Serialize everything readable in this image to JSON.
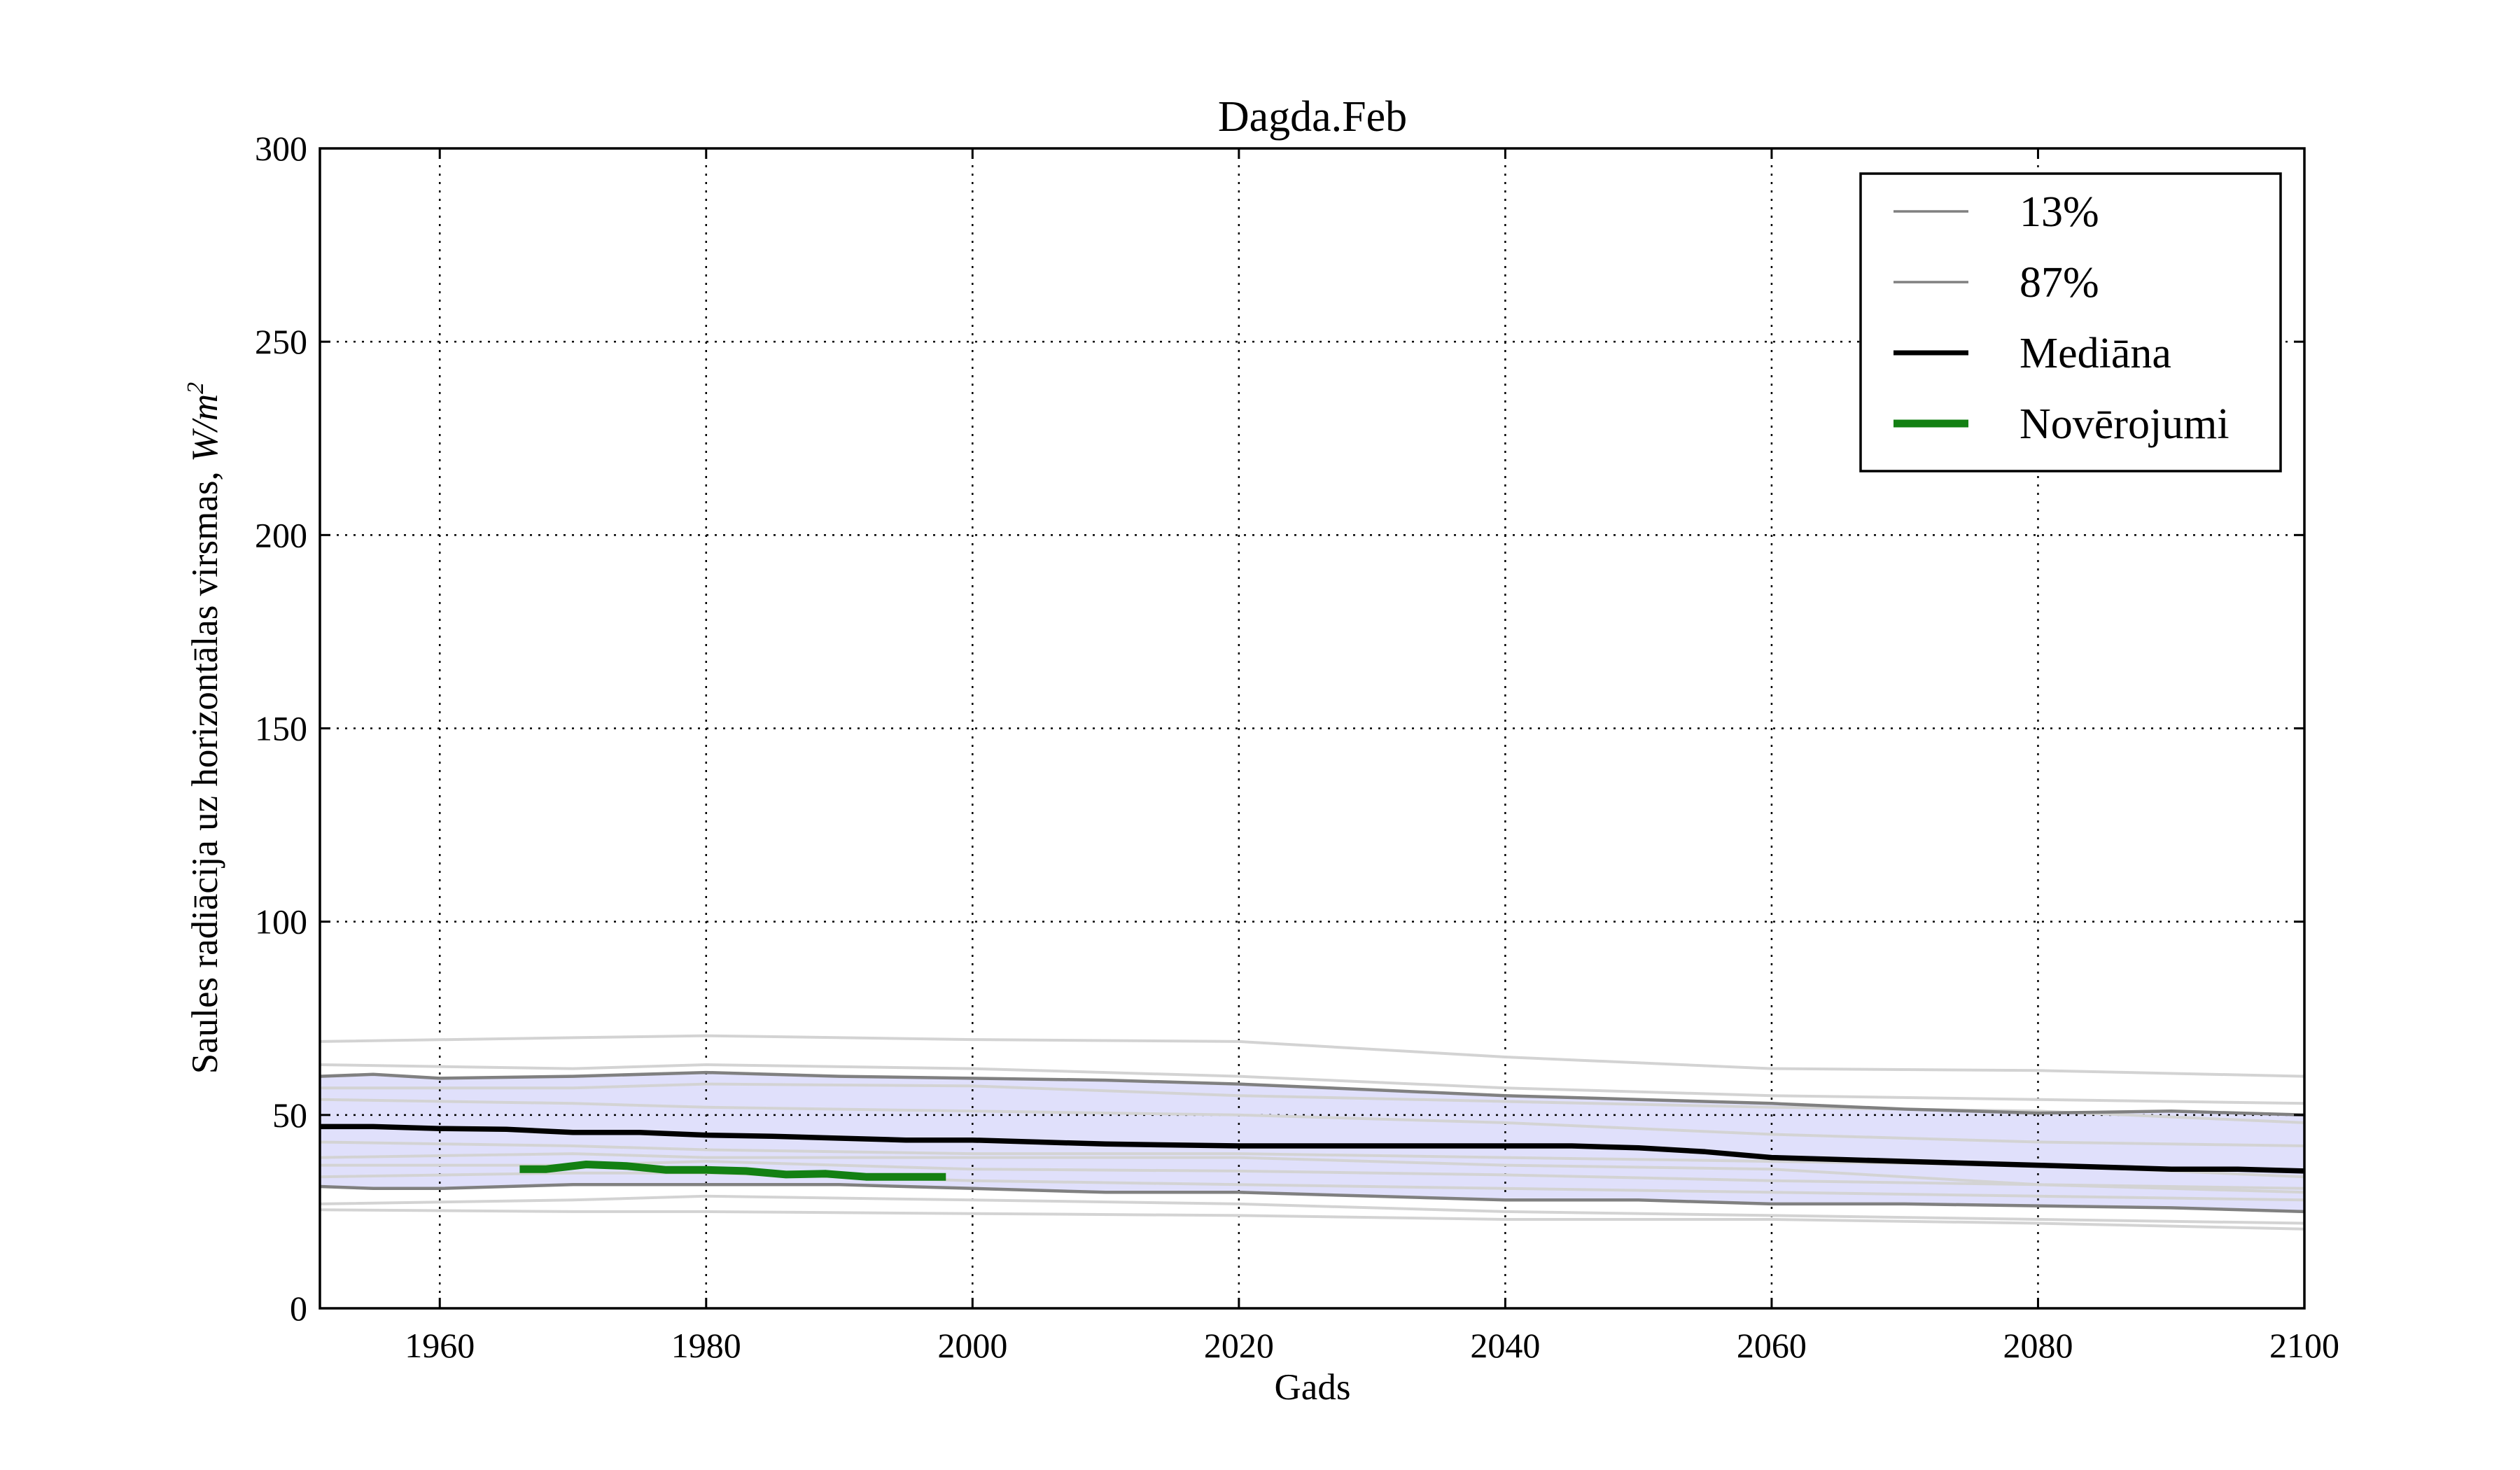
{
  "chart_data": {
    "type": "line",
    "title": "Dagda.Feb",
    "xlabel": "Gads",
    "ylabel": "Saules radiācija uz horizontālas virsmas, ",
    "ylabel_unit": "W/m",
    "ylabel_unit_sup": "2",
    "xlim": [
      1951,
      2100
    ],
    "ylim": [
      0,
      300
    ],
    "xticks": [
      1960,
      1980,
      2000,
      2020,
      2040,
      2060,
      2080,
      2100
    ],
    "yticks": [
      0,
      50,
      100,
      150,
      200,
      250,
      300
    ],
    "grid": true,
    "legend_position": "top-right",
    "colors": {
      "band_fill": "#e0e0fb",
      "p13": "#808080",
      "p87": "#808080",
      "median": "#000000",
      "observations": "#138013",
      "ensemble": "#d3d3d3"
    },
    "series": [
      {
        "name": "13%",
        "x": [
          1951,
          1955,
          1960,
          1970,
          1980,
          1990,
          2000,
          2010,
          2020,
          2030,
          2040,
          2050,
          2060,
          2070,
          2080,
          2090,
          2100
        ],
        "values": [
          31.5,
          31,
          31,
          32,
          32,
          32,
          31,
          30,
          30,
          29,
          28,
          28,
          27,
          27,
          26.5,
          26,
          25
        ]
      },
      {
        "name": "87%",
        "x": [
          1951,
          1955,
          1960,
          1970,
          1980,
          1990,
          2000,
          2010,
          2020,
          2030,
          2040,
          2050,
          2060,
          2070,
          2080,
          2090,
          2100
        ],
        "values": [
          60,
          60.5,
          59.5,
          60,
          61,
          60,
          59.5,
          59,
          58,
          56.5,
          55,
          54,
          53,
          51.5,
          50.5,
          51,
          50
        ]
      },
      {
        "name": "Mediāna",
        "x": [
          1951,
          1955,
          1960,
          1965,
          1970,
          1975,
          1980,
          1985,
          1990,
          1995,
          2000,
          2005,
          2010,
          2020,
          2030,
          2040,
          2045,
          2050,
          2055,
          2060,
          2065,
          2070,
          2075,
          2080,
          2085,
          2090,
          2095,
          2100
        ],
        "values": [
          47,
          47,
          46.5,
          46.3,
          45.5,
          45.5,
          44.8,
          44.5,
          44,
          43.5,
          43.5,
          43,
          42.5,
          42,
          42,
          42,
          42,
          41.5,
          40.5,
          39,
          38.5,
          38,
          37.5,
          37,
          36.5,
          36,
          36,
          35.5
        ]
      },
      {
        "name": "Novērojumi",
        "x": [
          1966,
          1968,
          1971,
          1974,
          1977,
          1980,
          1983,
          1986,
          1989,
          1992,
          1995,
          1998
        ],
        "values": [
          36,
          36,
          37.2,
          36.8,
          35.8,
          35.8,
          35.5,
          34.6,
          34.8,
          34,
          34,
          34
        ]
      }
    ],
    "ensemble_members": [
      {
        "x": [
          1951,
          1970,
          1980,
          2000,
          2020,
          2040,
          2060,
          2080,
          2100
        ],
        "values": [
          69,
          70,
          70.5,
          69.5,
          69,
          65,
          62,
          61.5,
          60
        ]
      },
      {
        "x": [
          1951,
          1970,
          1980,
          2000,
          2020,
          2040,
          2060,
          2080,
          2100
        ],
        "values": [
          63,
          62,
          63,
          62,
          60,
          57,
          55,
          54,
          53
        ]
      },
      {
        "x": [
          1951,
          1970,
          1980,
          2000,
          2020,
          2040,
          2060,
          2080,
          2100
        ],
        "values": [
          57,
          57,
          58,
          57.5,
          55,
          53.5,
          52,
          51,
          48
        ]
      },
      {
        "x": [
          1951,
          1970,
          1980,
          2000,
          2020,
          2040,
          2060,
          2080,
          2100
        ],
        "values": [
          54,
          53,
          52,
          51,
          50,
          48,
          45,
          43,
          42
        ]
      },
      {
        "x": [
          1951,
          1970,
          1980,
          2000,
          2020,
          2040,
          2060,
          2080,
          2100
        ],
        "values": [
          43,
          42,
          41,
          40,
          40,
          39,
          38,
          37,
          34
        ]
      },
      {
        "x": [
          1951,
          1970,
          1980,
          2000,
          2020,
          2040,
          2060,
          2080,
          2100
        ],
        "values": [
          39,
          40,
          39,
          39,
          39,
          37,
          36,
          32,
          30
        ]
      },
      {
        "x": [
          1951,
          1970,
          1980,
          2000,
          2020,
          2040,
          2060,
          2080,
          2100
        ],
        "values": [
          37,
          37,
          38,
          36,
          35.5,
          34.5,
          33,
          32,
          31
        ]
      },
      {
        "x": [
          1951,
          1970,
          1980,
          2000,
          2020,
          2040,
          2060,
          2080,
          2100
        ],
        "values": [
          34,
          35,
          35,
          33,
          32,
          31,
          30,
          29,
          28
        ]
      },
      {
        "x": [
          1951,
          1970,
          1980,
          2000,
          2020,
          2040,
          2060,
          2080,
          2100
        ],
        "values": [
          27,
          28,
          29,
          28,
          27,
          25,
          24,
          23,
          22
        ]
      },
      {
        "x": [
          1951,
          1970,
          1980,
          2000,
          2020,
          2040,
          2060,
          2080,
          2100
        ],
        "values": [
          25.5,
          25,
          25,
          24.5,
          24,
          23,
          23,
          22,
          20.5
        ]
      }
    ]
  }
}
